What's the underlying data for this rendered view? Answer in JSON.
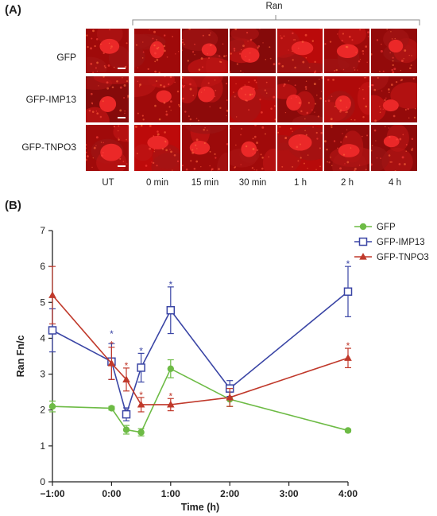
{
  "panel_a": {
    "label": "(A)",
    "group_label": "Ran",
    "row_labels": [
      "GFP",
      "GFP-IMP13",
      "GFP-TNPO3"
    ],
    "column_labels": [
      "UT",
      "0 min",
      "15 min",
      "30 min",
      "1 h",
      "2 h",
      "4 h"
    ]
  },
  "panel_b": {
    "label": "(B)"
  },
  "chart_data": {
    "type": "line",
    "xlabel": "Time (h)",
    "ylabel": "Ran Fn/c",
    "xlim": [
      -1,
      4
    ],
    "ylim": [
      0,
      7
    ],
    "x_ticks": [
      -1,
      0,
      1,
      2,
      3,
      4
    ],
    "x_tick_labels": [
      "−1:00",
      "0:00",
      "1:00",
      "2:00",
      "3:00",
      "4:00"
    ],
    "y_ticks": [
      0,
      1,
      2,
      3,
      4,
      5,
      6,
      7
    ],
    "y_tick_labels": [
      "0",
      "1",
      "2",
      "3",
      "4",
      "5",
      "6",
      "7"
    ],
    "legend_position": "top-right",
    "series": [
      {
        "name": "GFP",
        "color": "#6dbb45",
        "marker": "circle",
        "x": [
          -1,
          0,
          0.25,
          0.5,
          1,
          2,
          4
        ],
        "y": [
          2.1,
          2.05,
          1.45,
          1.38,
          3.15,
          2.3,
          1.43
        ],
        "err": [
          0.15,
          0.05,
          0.12,
          0.1,
          0.25,
          0.2,
          0.04
        ],
        "stars": []
      },
      {
        "name": "GFP-IMP13",
        "color": "#3a45a5",
        "marker": "square-open",
        "x": [
          -1,
          0,
          0.25,
          0.5,
          1,
          2,
          4
        ],
        "y": [
          4.22,
          3.35,
          1.88,
          3.18,
          4.78,
          2.6,
          5.3
        ],
        "err": [
          0.6,
          0.5,
          0.18,
          0.4,
          0.65,
          0.22,
          0.7
        ],
        "stars": [
          0,
          0.5,
          1,
          4
        ]
      },
      {
        "name": "GFP-TNPO3",
        "color": "#c0392b",
        "marker": "triangle",
        "x": [
          -1,
          0,
          0.25,
          0.5,
          1,
          2,
          4
        ],
        "y": [
          5.2,
          3.3,
          2.85,
          2.15,
          2.15,
          2.35,
          3.45
        ],
        "err": [
          0.8,
          0.45,
          0.32,
          0.2,
          0.17,
          0.25,
          0.27
        ],
        "stars": [
          0,
          0.25,
          0.5,
          1,
          4
        ]
      }
    ],
    "star_symbol": "*"
  }
}
